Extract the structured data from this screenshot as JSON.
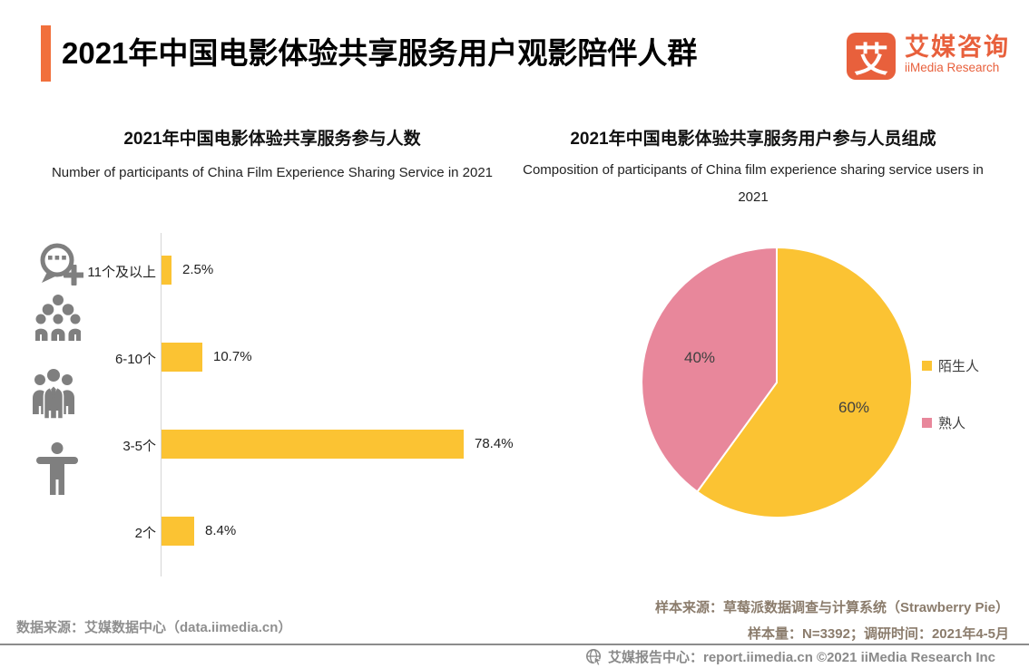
{
  "header": {
    "title": "2021年中国电影体验共享服务用户观影陪伴人群",
    "logo": {
      "glyph": "艾",
      "name_cn": "艾媒咨询",
      "name_en": "iiMedia Research"
    }
  },
  "chart_data": [
    {
      "type": "bar",
      "orientation": "horizontal",
      "title": "2021年中国电影体验共享服务参与人数",
      "subtitle": "Number of participants of China Film Experience Sharing Service in 2021",
      "categories": [
        "11个及以上",
        "6-10个",
        "3-5个",
        "2个"
      ],
      "values": [
        2.5,
        10.7,
        78.4,
        8.4
      ],
      "value_labels": [
        "2.5%",
        "10.7%",
        "78.4%",
        "8.4%"
      ],
      "unit": "%",
      "xlim": [
        0,
        100
      ],
      "bar_color": "#FBC333",
      "grid": false,
      "category_icons": [
        "chat-add-icon",
        "crowd-icon",
        "team-icon",
        "person-icon"
      ]
    },
    {
      "type": "pie",
      "title": "2021年中国电影体验共享服务用户参与人员组成",
      "subtitle": "Composition of participants of China film experience sharing service users in 2021",
      "slices": [
        {
          "label": "陌生人",
          "value": 60,
          "display": "60%",
          "color": "#FBC333"
        },
        {
          "label": "熟人",
          "value": 40,
          "display": "40%",
          "color": "#E8879B"
        }
      ],
      "start_angle_deg": 0,
      "direction": "clockwise",
      "legend_position": "right"
    }
  ],
  "footnotes": {
    "data_source": "数据来源：艾媒数据中心（data.iimedia.cn）",
    "sample_source": "样本来源：草莓派数据调查与计算系统（Strawberry Pie）",
    "sample_info": "样本量：N=3392；调研时间：2021年4-5月"
  },
  "footer": {
    "text": "艾媒报告中心：report.iimedia.cn ©2021  iiMedia Research Inc"
  },
  "colors": {
    "accent_orange": "#F1703C",
    "logo_orange": "#E8603C",
    "bar_yellow": "#FBC333",
    "pie_pink": "#E8879B",
    "icon_gray": "#7F7F7F"
  }
}
